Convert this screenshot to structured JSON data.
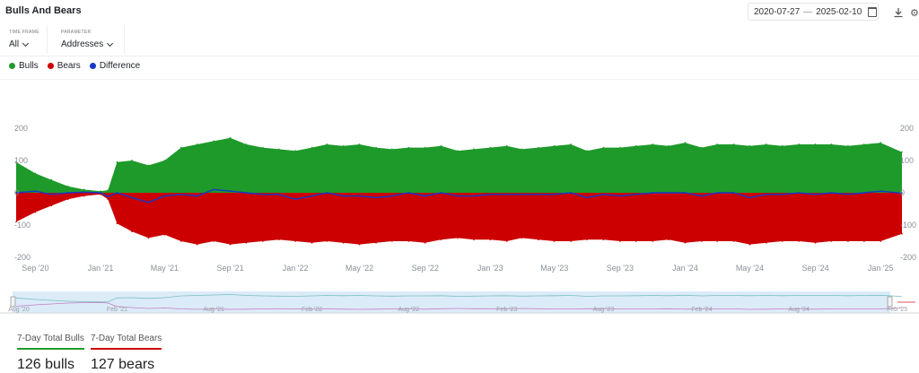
{
  "header": {
    "title": "Bulls And Bears",
    "date_from": "2020-07-27",
    "date_sep": "—",
    "date_to": "2025-02-10"
  },
  "filters": {
    "timeframe_label": "TIME FRAME",
    "timeframe_value": "All",
    "parameter_label": "PARAMETER",
    "parameter_value": "Addresses"
  },
  "legend": [
    "Bulls",
    "Bears",
    "Difference"
  ],
  "colors": {
    "bulls": "#1e9a2a",
    "bears": "#cc0000",
    "difference": "#1538c8"
  },
  "icons": [
    "calendar-icon",
    "download-icon",
    "more-icon"
  ],
  "chart_data": {
    "type": "area",
    "x": [
      "2020-07-27",
      "2020-09-01",
      "2020-10-01",
      "2020-11-01",
      "2020-12-01",
      "2021-01-01",
      "2021-01-15",
      "2021-02-01",
      "2021-03-01",
      "2021-04-01",
      "2021-05-01",
      "2021-06-01",
      "2021-07-01",
      "2021-08-01",
      "2021-09-01",
      "2021-10-01",
      "2021-11-01",
      "2021-12-01",
      "2022-01-01",
      "2022-02-01",
      "2022-03-01",
      "2022-04-01",
      "2022-05-01",
      "2022-06-01",
      "2022-07-01",
      "2022-08-01",
      "2022-09-01",
      "2022-10-01",
      "2022-11-01",
      "2022-12-01",
      "2023-01-01",
      "2023-02-01",
      "2023-03-01",
      "2023-04-01",
      "2023-05-01",
      "2023-06-01",
      "2023-07-01",
      "2023-08-01",
      "2023-09-01",
      "2023-10-01",
      "2023-11-01",
      "2023-12-01",
      "2024-01-01",
      "2024-02-01",
      "2024-03-01",
      "2024-04-01",
      "2024-05-01",
      "2024-06-01",
      "2024-07-01",
      "2024-08-01",
      "2024-09-01",
      "2024-10-01",
      "2024-11-01",
      "2024-12-01",
      "2025-01-01",
      "2025-02-10"
    ],
    "series": [
      {
        "name": "Bulls",
        "values": [
          95,
          60,
          40,
          20,
          10,
          5,
          8,
          95,
          100,
          85,
          100,
          140,
          150,
          160,
          170,
          150,
          140,
          135,
          130,
          140,
          150,
          145,
          150,
          140,
          135,
          140,
          140,
          145,
          130,
          135,
          140,
          145,
          135,
          140,
          145,
          150,
          130,
          140,
          140,
          145,
          150,
          145,
          155,
          140,
          150,
          150,
          145,
          150,
          145,
          150,
          150,
          150,
          145,
          150,
          155,
          126
        ]
      },
      {
        "name": "Bears",
        "values": [
          -90,
          -60,
          -40,
          -20,
          -10,
          -5,
          -20,
          -95,
          -120,
          -140,
          -130,
          -150,
          -160,
          -150,
          -160,
          -155,
          -150,
          -145,
          -150,
          -155,
          -150,
          -155,
          -160,
          -155,
          -150,
          -150,
          -155,
          -145,
          -140,
          -145,
          -145,
          -150,
          -140,
          -145,
          -150,
          -150,
          -145,
          -145,
          -150,
          -150,
          -150,
          -145,
          -155,
          -150,
          -150,
          -150,
          -160,
          -155,
          -150,
          -150,
          -155,
          -150,
          -150,
          -150,
          -150,
          -127
        ]
      },
      {
        "name": "Difference",
        "values": [
          0,
          5,
          -5,
          0,
          2,
          0,
          -12,
          0,
          -15,
          -30,
          -10,
          -5,
          -10,
          10,
          5,
          0,
          -5,
          -5,
          -20,
          -10,
          0,
          -10,
          -10,
          -15,
          -10,
          0,
          -10,
          0,
          -10,
          -10,
          -5,
          -5,
          -5,
          -5,
          -5,
          0,
          -15,
          -5,
          -10,
          -5,
          0,
          0,
          0,
          -10,
          0,
          0,
          -15,
          -5,
          -5,
          0,
          -5,
          0,
          -5,
          0,
          5,
          -1
        ]
      }
    ],
    "yticks": [
      200,
      100,
      0,
      -100,
      -200
    ],
    "ylim": [
      -230,
      250
    ],
    "xticks": [
      "Sep '20",
      "Jan '21",
      "May '21",
      "Sep '21",
      "Jan '22",
      "May '22",
      "Sep '22",
      "Jan '23",
      "May '23",
      "Sep '23",
      "Jan '24",
      "May '24",
      "Sep '24",
      "Jan '25"
    ],
    "navigator_ticks": [
      "Aug '20",
      "Feb '21",
      "Aug '21",
      "Feb '22",
      "Aug '22",
      "Feb '23",
      "Aug '23",
      "Feb '24",
      "Aug '24",
      "Feb '25"
    ],
    "grid": false,
    "legend_position": "top-left"
  },
  "stats": [
    {
      "label": "7-Day Total Bulls",
      "value": "126 bulls",
      "color": "#1e9a2a"
    },
    {
      "label": "7-Day Total Bears",
      "value": "127 bears",
      "color": "#cc0000"
    }
  ]
}
